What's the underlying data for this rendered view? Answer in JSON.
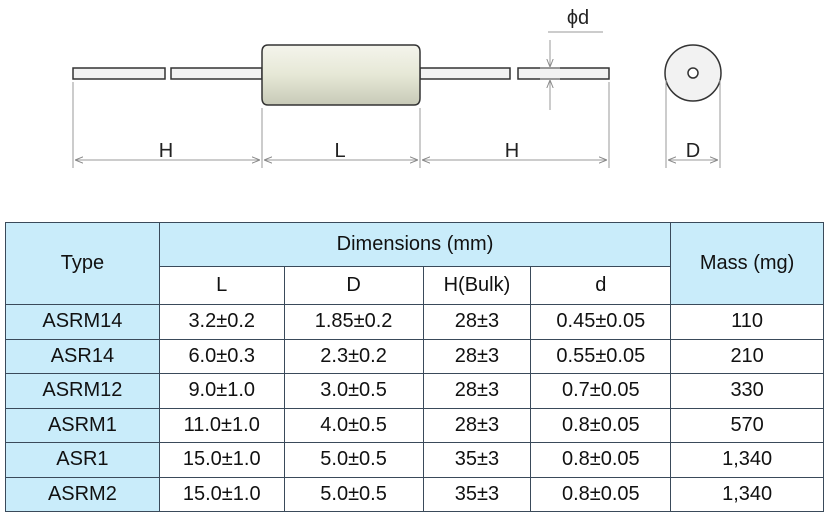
{
  "diagram": {
    "wire_diameter": "ϕd",
    "lead_left": "H",
    "body_length": "L",
    "lead_right": "H",
    "diameter": "D"
  },
  "table": {
    "header": {
      "type": "Type",
      "dimensions": "Dimensions (mm)",
      "mass": "Mass (mg)",
      "sub": [
        "L",
        "D",
        "H(Bulk)",
        "d"
      ]
    },
    "rows": [
      [
        "ASRM14",
        "3.2±0.2",
        "1.85±0.2",
        "28±3",
        "0.45±0.05",
        "110"
      ],
      [
        "ASR14",
        "6.0±0.3",
        "2.3±0.2",
        "28±3",
        "0.55±0.05",
        "210"
      ],
      [
        "ASRM12",
        "9.0±1.0",
        "3.0±0.5",
        "28±3",
        "0.7±0.05",
        "330"
      ],
      [
        "ASRM1",
        "11.0±1.0",
        "4.0±0.5",
        "28±3",
        "0.8±0.05",
        "570"
      ],
      [
        "ASR1",
        "15.0±1.0",
        "5.0±0.5",
        "35±3",
        "0.8±0.05",
        "1,340"
      ],
      [
        "ASRM2",
        "15.0±1.0",
        "5.0±0.5",
        "35±3",
        "0.8±0.05",
        "1,340"
      ]
    ]
  }
}
